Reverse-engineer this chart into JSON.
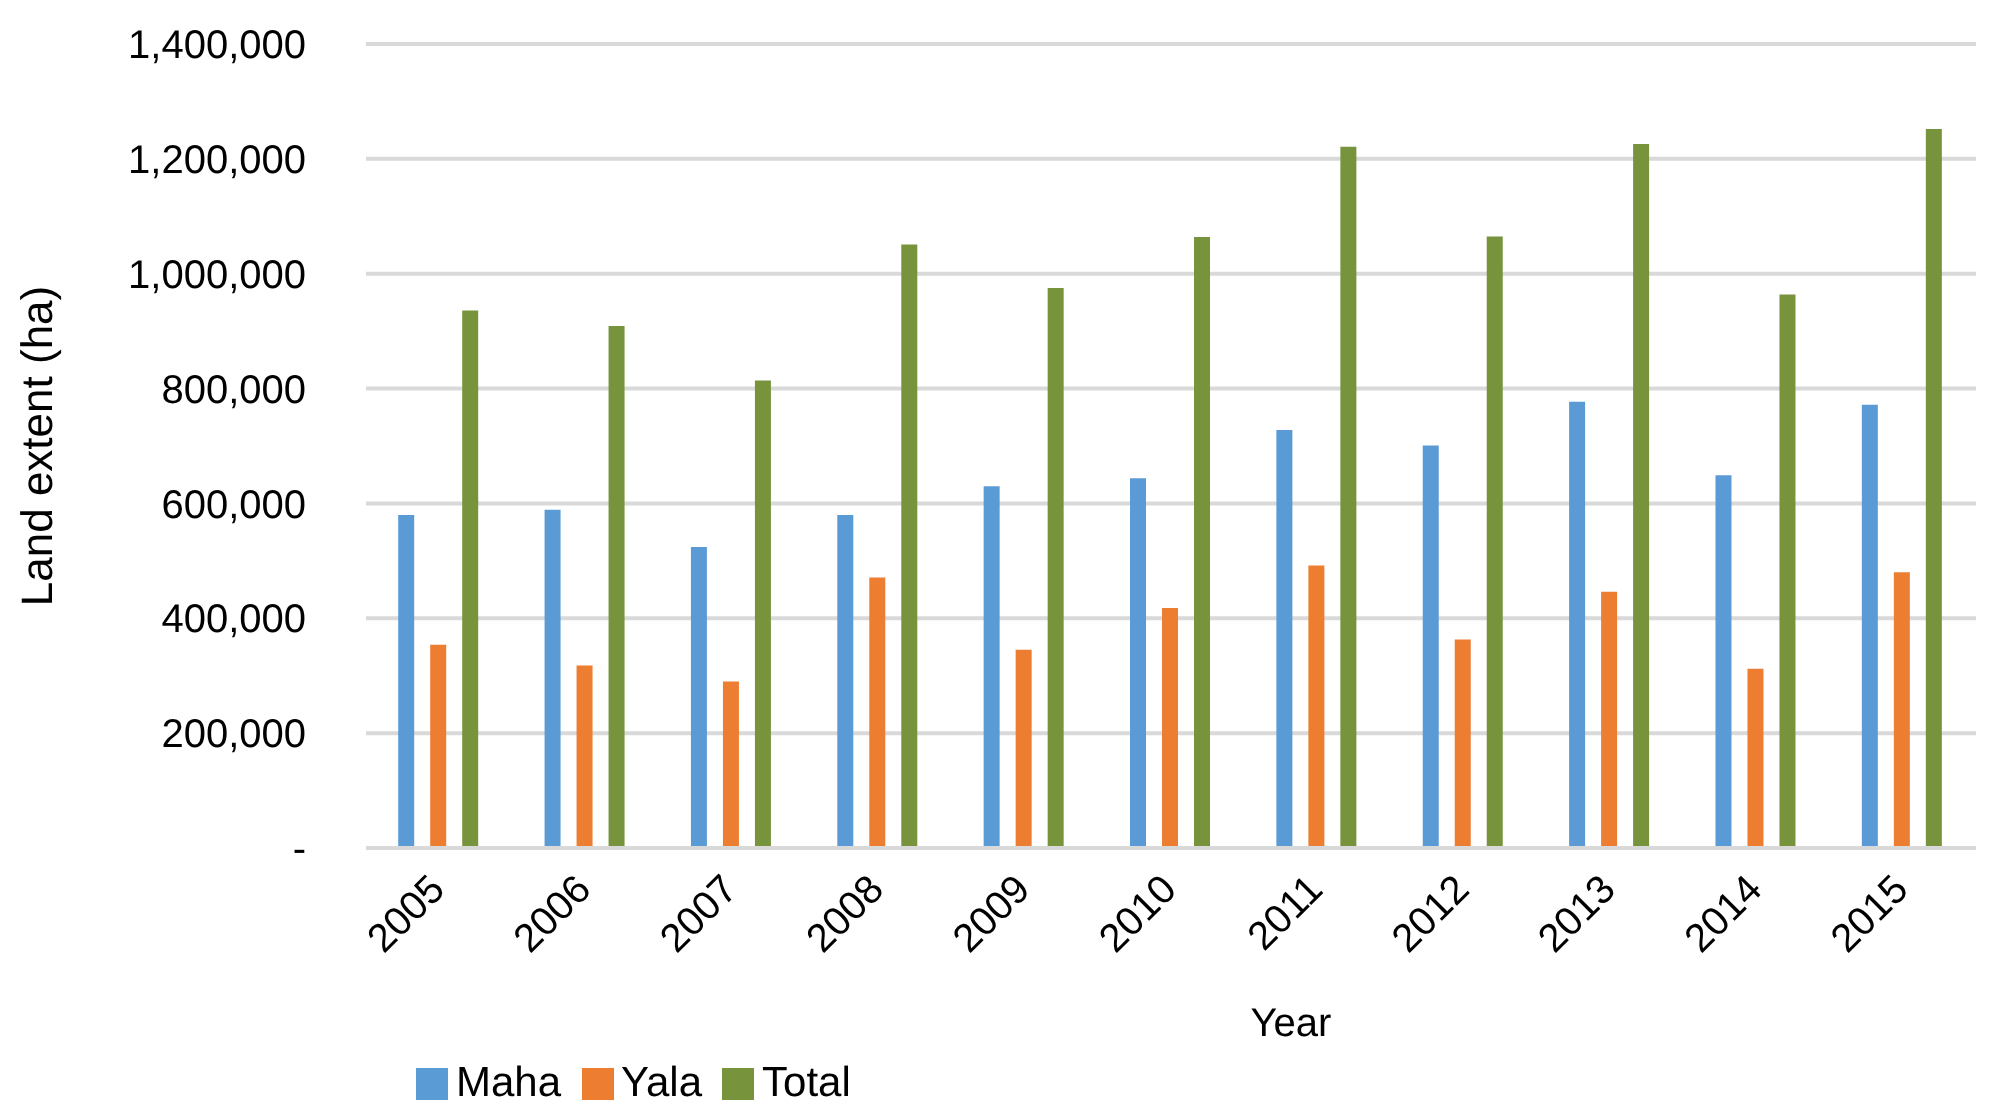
{
  "chart_data": {
    "type": "bar",
    "xlabel": "Year",
    "ylabel": "Land extent (ha)",
    "categories": [
      "2005",
      "2006",
      "2007",
      "2008",
      "2009",
      "2010",
      "2011",
      "2012",
      "2013",
      "2014",
      "2015"
    ],
    "series": [
      {
        "name": "Maha",
        "color": "#5b9bd5",
        "values": [
          580000,
          589000,
          524000,
          580000,
          630000,
          644000,
          728000,
          701000,
          777000,
          649000,
          772000
        ]
      },
      {
        "name": "Yala",
        "color": "#ed7d31",
        "values": [
          354000,
          318000,
          290000,
          471000,
          345000,
          418000,
          492000,
          363000,
          446000,
          312000,
          480000
        ]
      },
      {
        "name": "Total",
        "color": "#77933c",
        "values": [
          936000,
          909000,
          814000,
          1051000,
          975000,
          1064000,
          1221000,
          1065000,
          1226000,
          964000,
          1252000
        ]
      }
    ],
    "ylim": [
      0,
      1400000
    ],
    "yticks": [
      {
        "value": 0,
        "label": "-"
      },
      {
        "value": 200000,
        "label": "200,000"
      },
      {
        "value": 400000,
        "label": "400,000"
      },
      {
        "value": 600000,
        "label": "600,000"
      },
      {
        "value": 800000,
        "label": "800,000"
      },
      {
        "value": 1000000,
        "label": "1,000,000"
      },
      {
        "value": 1200000,
        "label": "1,200,000"
      },
      {
        "value": 1400000,
        "label": "1,400,000"
      }
    ],
    "grid": "y",
    "legend": "bottom"
  }
}
